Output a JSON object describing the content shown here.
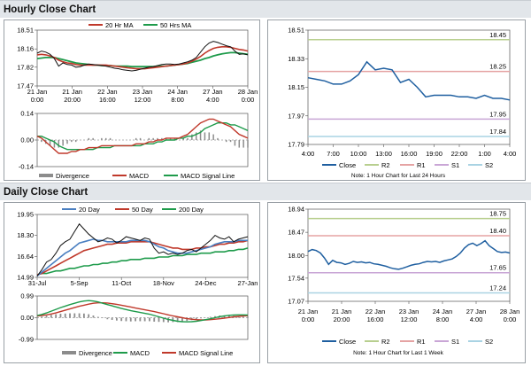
{
  "sections": {
    "hourly_title": "Hourly Close Chart",
    "daily_title": "Daily Close Chart"
  },
  "colors": {
    "price": "#111111",
    "ma_short": "#c0392b",
    "ma_long": "#1e9b4b",
    "close": "#1f5fa0",
    "r2": "#b8cf8f",
    "r1": "#e5a3a3",
    "s1": "#c9a6d6",
    "s2": "#a9d3e3",
    "divergence": "#8c8c8c",
    "macd": "#c0392b",
    "signal": "#1e9b4b",
    "ma20": "#4a7fc1"
  },
  "chart_data": [
    {
      "id": "hourly_price",
      "type": "line",
      "legend": [
        "20 Hr MA",
        "50 Hrs MA"
      ],
      "yticks": [
        "18.51",
        "18.16",
        "17.82",
        "17.47"
      ],
      "ylim": [
        17.47,
        18.51
      ],
      "xticks": [
        "21 Jan\n0:00",
        "21 Jan\n20:00",
        "22 Jan\n16:00",
        "23 Jan\n12:00",
        "24 Jan\n8:00",
        "27 Jan\n4:00",
        "28 Jan\n0:00"
      ],
      "series": [
        {
          "name": "price",
          "values": [
            18.08,
            18.12,
            18.1,
            18.06,
            17.98,
            17.84,
            17.9,
            17.87,
            17.86,
            17.82,
            17.83,
            17.86,
            17.88,
            17.87,
            17.86,
            17.85,
            17.84,
            17.82,
            17.8,
            17.79,
            17.77,
            17.76,
            17.75,
            17.76,
            17.78,
            17.8,
            17.82,
            17.83,
            17.85,
            17.87,
            17.88,
            17.88,
            17.87,
            17.88,
            17.9,
            17.92,
            17.95,
            18.0,
            18.1,
            18.2,
            18.27,
            18.3,
            18.28,
            18.25,
            18.22,
            18.2,
            18.12,
            18.06,
            18.07,
            18.05
          ]
        },
        {
          "name": "20 Hr MA",
          "values": [
            18.05,
            18.06,
            18.05,
            18.03,
            18.0,
            17.95,
            17.92,
            17.9,
            17.89,
            17.87,
            17.86,
            17.86,
            17.86,
            17.86,
            17.86,
            17.86,
            17.86,
            17.85,
            17.84,
            17.83,
            17.82,
            17.81,
            17.8,
            17.79,
            17.79,
            17.79,
            17.8,
            17.81,
            17.82,
            17.83,
            17.84,
            17.85,
            17.86,
            17.87,
            17.88,
            17.9,
            17.93,
            17.97,
            18.02,
            18.08,
            18.13,
            18.17,
            18.19,
            18.2,
            18.2,
            18.19,
            18.17,
            18.15,
            18.14,
            18.12
          ]
        },
        {
          "name": "50 Hrs MA",
          "values": [
            17.98,
            17.99,
            18.0,
            18.0,
            18.0,
            17.98,
            17.96,
            17.94,
            17.92,
            17.9,
            17.89,
            17.88,
            17.87,
            17.86,
            17.86,
            17.85,
            17.85,
            17.85,
            17.84,
            17.84,
            17.84,
            17.84,
            17.83,
            17.83,
            17.83,
            17.83,
            17.83,
            17.83,
            17.84,
            17.84,
            17.84,
            17.85,
            17.86,
            17.87,
            17.88,
            17.89,
            17.91,
            17.93,
            17.95,
            17.98,
            18.0,
            18.03,
            18.05,
            18.07,
            18.08,
            18.09,
            18.09,
            18.08,
            18.07,
            18.06
          ]
        }
      ]
    },
    {
      "id": "hourly_macd",
      "type": "bar",
      "legend": [
        "Divergence",
        "MACD",
        "MACD Signal Line"
      ],
      "yticks": [
        "0.14",
        "0.00",
        "-0.14"
      ],
      "ylim": [
        -0.14,
        0.14
      ],
      "series": [
        {
          "name": "MACD",
          "values": [
            0.02,
            0.01,
            -0.01,
            -0.03,
            -0.05,
            -0.07,
            -0.07,
            -0.07,
            -0.06,
            -0.06,
            -0.05,
            -0.05,
            -0.04,
            -0.04,
            -0.04,
            -0.03,
            -0.03,
            -0.03,
            -0.03,
            -0.03,
            -0.03,
            -0.03,
            -0.03,
            -0.02,
            -0.02,
            -0.02,
            -0.01,
            -0.01,
            0.0,
            0.0,
            0.01,
            0.01,
            0.01,
            0.01,
            0.02,
            0.03,
            0.05,
            0.07,
            0.09,
            0.1,
            0.11,
            0.11,
            0.1,
            0.09,
            0.08,
            0.07,
            0.05,
            0.03,
            0.02,
            0.01
          ]
        },
        {
          "name": "MACD Signal Line",
          "values": [
            0.02,
            0.02,
            0.01,
            0.0,
            -0.01,
            -0.03,
            -0.04,
            -0.05,
            -0.05,
            -0.05,
            -0.05,
            -0.05,
            -0.05,
            -0.05,
            -0.04,
            -0.04,
            -0.04,
            -0.04,
            -0.03,
            -0.03,
            -0.03,
            -0.03,
            -0.03,
            -0.03,
            -0.03,
            -0.02,
            -0.02,
            -0.02,
            -0.01,
            -0.01,
            0.0,
            0.0,
            0.0,
            0.01,
            0.01,
            0.02,
            0.02,
            0.03,
            0.04,
            0.06,
            0.07,
            0.08,
            0.09,
            0.09,
            0.09,
            0.08,
            0.08,
            0.07,
            0.06,
            0.05
          ]
        },
        {
          "name": "Divergence",
          "values": [
            0.0,
            -0.01,
            -0.02,
            -0.03,
            -0.04,
            -0.04,
            -0.03,
            -0.02,
            -0.01,
            -0.01,
            0.0,
            0.0,
            0.01,
            0.01,
            0.0,
            0.01,
            0.01,
            0.01,
            0.0,
            0.0,
            0.0,
            0.0,
            0.0,
            0.01,
            0.01,
            0.0,
            0.01,
            0.01,
            0.01,
            0.01,
            0.01,
            0.01,
            0.01,
            0.0,
            0.01,
            0.01,
            0.03,
            0.04,
            0.05,
            0.04,
            0.04,
            0.03,
            0.01,
            0.0,
            -0.01,
            -0.01,
            -0.03,
            -0.04,
            -0.04,
            -0.04
          ]
        }
      ]
    },
    {
      "id": "hourly_24h",
      "type": "line",
      "legend": [
        "Close",
        "R2",
        "R1",
        "S1",
        "S2"
      ],
      "note": "Note: 1 Hour Chart for Last 24 Hours",
      "yticks": [
        "18.51",
        "18.33",
        "18.15",
        "17.97",
        "17.79"
      ],
      "ylim": [
        17.79,
        18.51
      ],
      "xticks": [
        "4:00",
        "7:00",
        "10:00",
        "13:00",
        "16:00",
        "19:00",
        "22:00",
        "1:00",
        "4:00"
      ],
      "levels": [
        {
          "name": "R2",
          "value": 18.45,
          "label": "18.45"
        },
        {
          "name": "R1",
          "value": 18.25,
          "label": "18.25"
        },
        {
          "name": "S1",
          "value": 17.95,
          "label": "17.95"
        },
        {
          "name": "S2",
          "value": 17.84,
          "label": "17.84"
        }
      ],
      "series": [
        {
          "name": "Close",
          "values": [
            18.21,
            18.2,
            18.19,
            18.17,
            18.17,
            18.19,
            18.23,
            18.31,
            18.26,
            18.27,
            18.26,
            18.18,
            18.2,
            18.15,
            18.09,
            18.1,
            18.1,
            18.1,
            18.09,
            18.09,
            18.08,
            18.1,
            18.08,
            18.08,
            18.07
          ]
        }
      ]
    },
    {
      "id": "daily_price",
      "type": "line",
      "legend": [
        "20 Day",
        "50 Day",
        "200 Day"
      ],
      "yticks": [
        "19.95",
        "18.30",
        "16.64",
        "14.99"
      ],
      "ylim": [
        14.99,
        19.95
      ],
      "xticks": [
        "31-Jul",
        "5-Sep",
        "11-Oct",
        "18-Nov",
        "24-Dec",
        "27-Jan"
      ],
      "series": [
        {
          "name": "price",
          "values": [
            15.1,
            15.6,
            16.2,
            16.4,
            16.9,
            17.5,
            17.8,
            18.0,
            18.6,
            19.2,
            18.8,
            18.4,
            18.1,
            17.8,
            17.9,
            18.1,
            18.0,
            17.7,
            17.9,
            18.2,
            18.1,
            18.0,
            17.9,
            18.1,
            18.0,
            17.3,
            16.9,
            17.0,
            16.8,
            16.9,
            16.8,
            16.9,
            17.1,
            17.2,
            17.0,
            17.3,
            17.6,
            17.9,
            18.3,
            18.1,
            18.0,
            18.2,
            17.8,
            18.0,
            18.1,
            18.2
          ]
        },
        {
          "name": "20 Day",
          "values": [
            15.1,
            15.4,
            15.7,
            16.0,
            16.3,
            16.6,
            16.9,
            17.1,
            17.4,
            17.7,
            17.8,
            17.9,
            18.0,
            17.9,
            17.9,
            17.8,
            17.8,
            17.8,
            17.8,
            17.8,
            17.9,
            17.9,
            17.9,
            17.9,
            17.8,
            17.6,
            17.4,
            17.3,
            17.1,
            17.0,
            16.9,
            16.9,
            16.9,
            17.0,
            17.1,
            17.2,
            17.3,
            17.4,
            17.6,
            17.7,
            17.8,
            17.8,
            17.8,
            17.9,
            17.9,
            17.9
          ]
        },
        {
          "name": "50 Day",
          "values": [
            15.2,
            15.3,
            15.5,
            15.7,
            15.9,
            16.1,
            16.3,
            16.5,
            16.7,
            16.9,
            17.1,
            17.2,
            17.3,
            17.4,
            17.5,
            17.6,
            17.6,
            17.7,
            17.7,
            17.7,
            17.8,
            17.8,
            17.8,
            17.8,
            17.8,
            17.7,
            17.6,
            17.5,
            17.4,
            17.3,
            17.3,
            17.2,
            17.2,
            17.2,
            17.3,
            17.3,
            17.4,
            17.4,
            17.5,
            17.6,
            17.6,
            17.7,
            17.7,
            17.8,
            17.8,
            17.9
          ]
        },
        {
          "name": "200 Day",
          "values": [
            15.2,
            15.3,
            15.3,
            15.4,
            15.5,
            15.5,
            15.6,
            15.7,
            15.7,
            15.8,
            15.9,
            15.9,
            16.0,
            16.0,
            16.1,
            16.1,
            16.2,
            16.2,
            16.3,
            16.3,
            16.4,
            16.4,
            16.4,
            16.5,
            16.5,
            16.5,
            16.6,
            16.6,
            16.6,
            16.7,
            16.7,
            16.7,
            16.8,
            16.8,
            16.8,
            16.9,
            16.9,
            16.9,
            17.0,
            17.0,
            17.0,
            17.1,
            17.1,
            17.2,
            17.2,
            17.3
          ]
        }
      ]
    },
    {
      "id": "daily_macd",
      "type": "bar",
      "legend": [
        "Divergence",
        "MACD",
        "MACD Signal Line"
      ],
      "yticks": [
        "0.99",
        "0.00",
        "-0.99"
      ],
      "ylim": [
        -0.99,
        0.99
      ],
      "series": [
        {
          "name": "MACD",
          "values": [
            0.1,
            0.15,
            0.22,
            0.3,
            0.38,
            0.46,
            0.53,
            0.6,
            0.66,
            0.72,
            0.76,
            0.78,
            0.76,
            0.72,
            0.66,
            0.6,
            0.54,
            0.48,
            0.42,
            0.37,
            0.32,
            0.28,
            0.24,
            0.2,
            0.16,
            0.1,
            0.04,
            -0.02,
            -0.08,
            -0.12,
            -0.16,
            -0.18,
            -0.19,
            -0.18,
            -0.16,
            -0.13,
            -0.09,
            -0.05,
            0.0,
            0.05,
            0.08,
            0.11,
            0.12,
            0.13,
            0.13,
            0.12
          ]
        },
        {
          "name": "MACD Signal Line",
          "values": [
            0.08,
            0.1,
            0.13,
            0.17,
            0.22,
            0.28,
            0.34,
            0.4,
            0.46,
            0.52,
            0.57,
            0.62,
            0.66,
            0.68,
            0.68,
            0.67,
            0.64,
            0.61,
            0.57,
            0.53,
            0.49,
            0.44,
            0.4,
            0.36,
            0.32,
            0.28,
            0.23,
            0.18,
            0.13,
            0.08,
            0.04,
            0.0,
            -0.04,
            -0.07,
            -0.09,
            -0.1,
            -0.1,
            -0.09,
            -0.07,
            -0.05,
            -0.02,
            0.01,
            0.04,
            0.06,
            0.08,
            0.09
          ]
        },
        {
          "name": "Divergence",
          "values": [
            0.02,
            0.05,
            0.09,
            0.13,
            0.16,
            0.18,
            0.19,
            0.2,
            0.2,
            0.2,
            0.19,
            0.16,
            0.1,
            0.04,
            -0.02,
            -0.07,
            -0.1,
            -0.13,
            -0.15,
            -0.16,
            -0.17,
            -0.16,
            -0.16,
            -0.16,
            -0.16,
            -0.18,
            -0.19,
            -0.2,
            -0.21,
            -0.2,
            -0.2,
            -0.18,
            -0.15,
            -0.11,
            -0.07,
            -0.03,
            0.01,
            0.04,
            0.07,
            0.1,
            0.1,
            0.1,
            0.08,
            0.07,
            0.05,
            0.03
          ]
        }
      ]
    },
    {
      "id": "daily_week",
      "type": "line",
      "legend": [
        "Close",
        "R2",
        "R1",
        "S1",
        "S2"
      ],
      "note": "Note: 1 Hour Chart for Last 1 Week",
      "yticks": [
        "18.94",
        "18.47",
        "18.00",
        "17.54",
        "17.07"
      ],
      "ylim": [
        17.07,
        18.94
      ],
      "xticks": [
        "21 Jan\n0:00",
        "21 Jan\n20:00",
        "22 Jan\n16:00",
        "23 Jan\n12:00",
        "24 Jan\n8:00",
        "27 Jan\n4:00",
        "28 Jan\n0:00"
      ],
      "levels": [
        {
          "name": "R2",
          "value": 18.75,
          "label": "18.75"
        },
        {
          "name": "R1",
          "value": 18.4,
          "label": "18.40"
        },
        {
          "name": "S1",
          "value": 17.65,
          "label": "17.65"
        },
        {
          "name": "S2",
          "value": 17.24,
          "label": "17.24"
        }
      ],
      "series": [
        {
          "name": "Close",
          "values": [
            18.08,
            18.12,
            18.1,
            18.05,
            17.95,
            17.82,
            17.9,
            17.86,
            17.85,
            17.82,
            17.84,
            17.88,
            17.86,
            17.87,
            17.85,
            17.86,
            17.83,
            17.82,
            17.8,
            17.78,
            17.75,
            17.73,
            17.72,
            17.74,
            17.77,
            17.8,
            17.82,
            17.83,
            17.86,
            17.88,
            17.87,
            17.88,
            17.86,
            17.89,
            17.91,
            17.93,
            17.98,
            18.05,
            18.15,
            18.22,
            18.25,
            18.2,
            18.24,
            18.3,
            18.2,
            18.14,
            18.08,
            18.06,
            18.07,
            18.05
          ]
        }
      ]
    }
  ]
}
